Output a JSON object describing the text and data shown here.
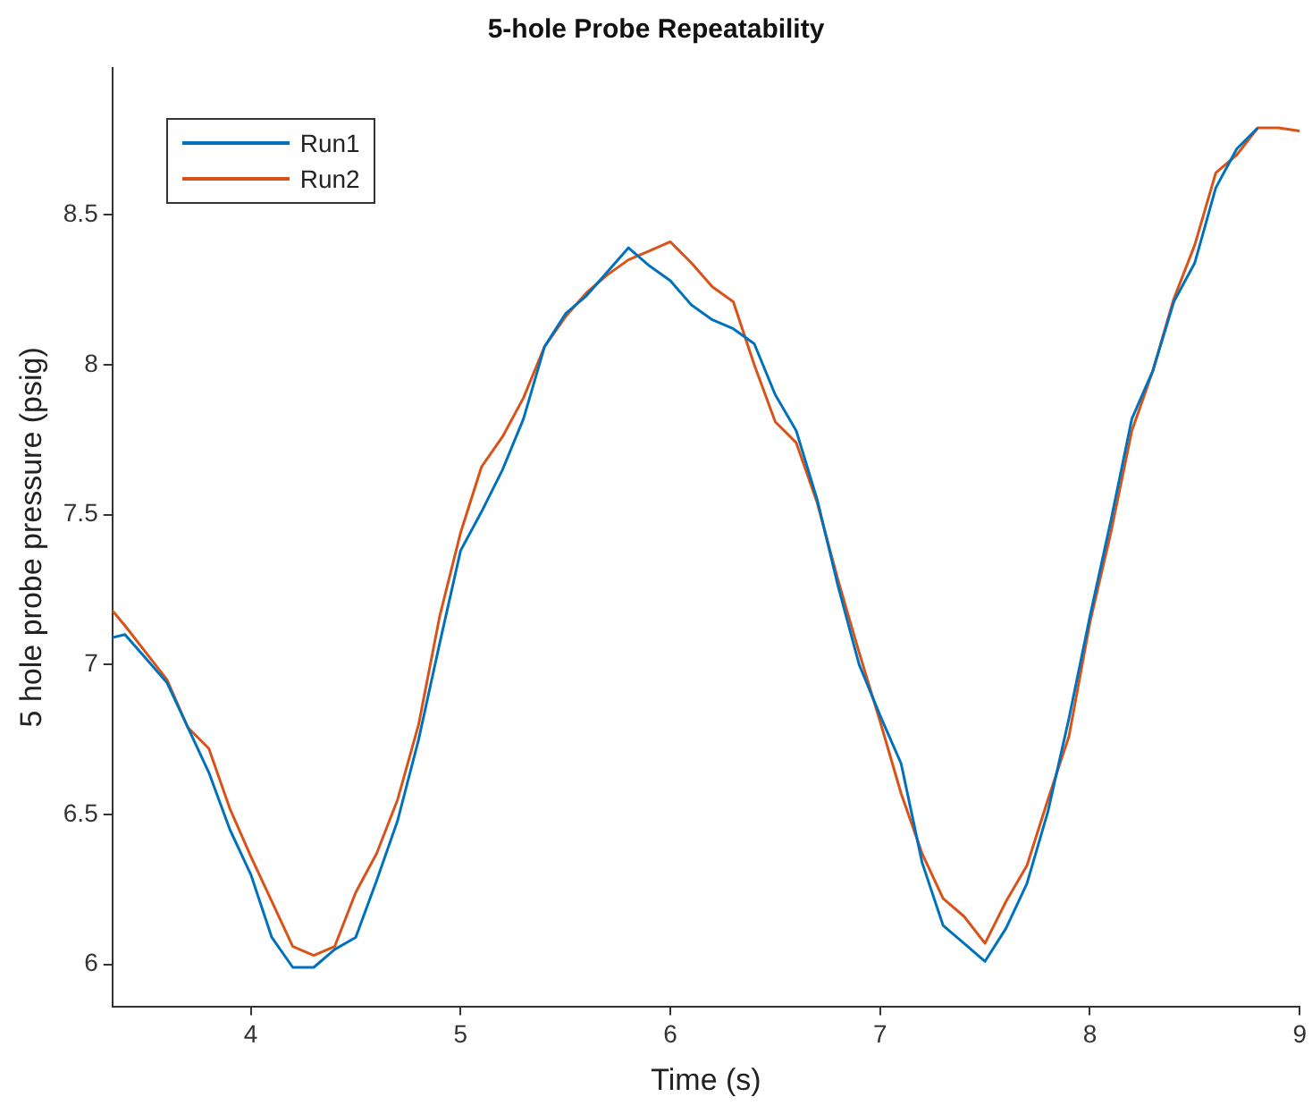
{
  "chart_data": {
    "type": "line",
    "title": "5-hole Probe Repeatability",
    "xlabel": "Time (s)",
    "ylabel": "5 hole probe pressure (psig)",
    "x": [
      3.34,
      3.4,
      3.5,
      3.6,
      3.7,
      3.8,
      3.9,
      4.0,
      4.1,
      4.2,
      4.3,
      4.4,
      4.5,
      4.6,
      4.7,
      4.8,
      4.9,
      5.0,
      5.1,
      5.2,
      5.3,
      5.4,
      5.5,
      5.6,
      5.7,
      5.8,
      5.9,
      6.0,
      6.1,
      6.2,
      6.3,
      6.4,
      6.5,
      6.6,
      6.7,
      6.8,
      6.9,
      7.0,
      7.1,
      7.2,
      7.3,
      7.4,
      7.5,
      7.6,
      7.7,
      7.8,
      7.9,
      8.0,
      8.1,
      8.2,
      8.3,
      8.4,
      8.5,
      8.6,
      8.7,
      8.8,
      8.9,
      9.0
    ],
    "series": [
      {
        "name": "Run1",
        "color": "#0072bd",
        "values": [
          7.09,
          7.1,
          7.02,
          6.94,
          6.79,
          6.64,
          6.45,
          6.3,
          6.09,
          5.99,
          5.99,
          6.05,
          6.09,
          6.28,
          6.48,
          6.75,
          7.07,
          7.38,
          7.51,
          7.65,
          7.82,
          8.06,
          8.17,
          8.23,
          8.31,
          8.39,
          8.33,
          8.28,
          8.2,
          8.15,
          8.12,
          8.07,
          7.9,
          7.78,
          7.55,
          7.26,
          7.0,
          6.83,
          6.67,
          6.34,
          6.13,
          6.07,
          6.01,
          6.12,
          6.27,
          6.51,
          6.82,
          7.16,
          7.48,
          7.82,
          7.98,
          8.21,
          8.34,
          8.59,
          8.72,
          8.79,
          null,
          null
        ]
      },
      {
        "name": "Run2",
        "color": "#d95319",
        "values": [
          7.18,
          7.13,
          7.04,
          6.95,
          6.79,
          6.72,
          6.52,
          6.36,
          6.21,
          6.06,
          6.03,
          6.06,
          6.24,
          6.37,
          6.55,
          6.8,
          7.16,
          7.44,
          7.66,
          7.76,
          7.89,
          8.06,
          8.16,
          8.24,
          8.3,
          8.35,
          8.38,
          8.41,
          8.34,
          8.26,
          8.21,
          8.0,
          7.81,
          7.74,
          7.54,
          7.28,
          7.04,
          6.81,
          6.57,
          6.37,
          6.22,
          6.16,
          6.07,
          6.21,
          6.33,
          6.55,
          6.76,
          7.14,
          7.44,
          7.78,
          7.98,
          8.22,
          8.4,
          8.64,
          8.7,
          8.79,
          8.79,
          8.78
        ]
      }
    ],
    "xlim": [
      3.34,
      9
    ],
    "xticks": [
      4,
      5,
      6,
      7,
      8,
      9
    ],
    "ylim": [
      5.86,
      8.99
    ],
    "yticks": [
      6,
      6.5,
      7,
      7.5,
      8,
      8.5
    ],
    "grid": false,
    "legend": "top left",
    "marker": "none",
    "line_style": "solid"
  }
}
